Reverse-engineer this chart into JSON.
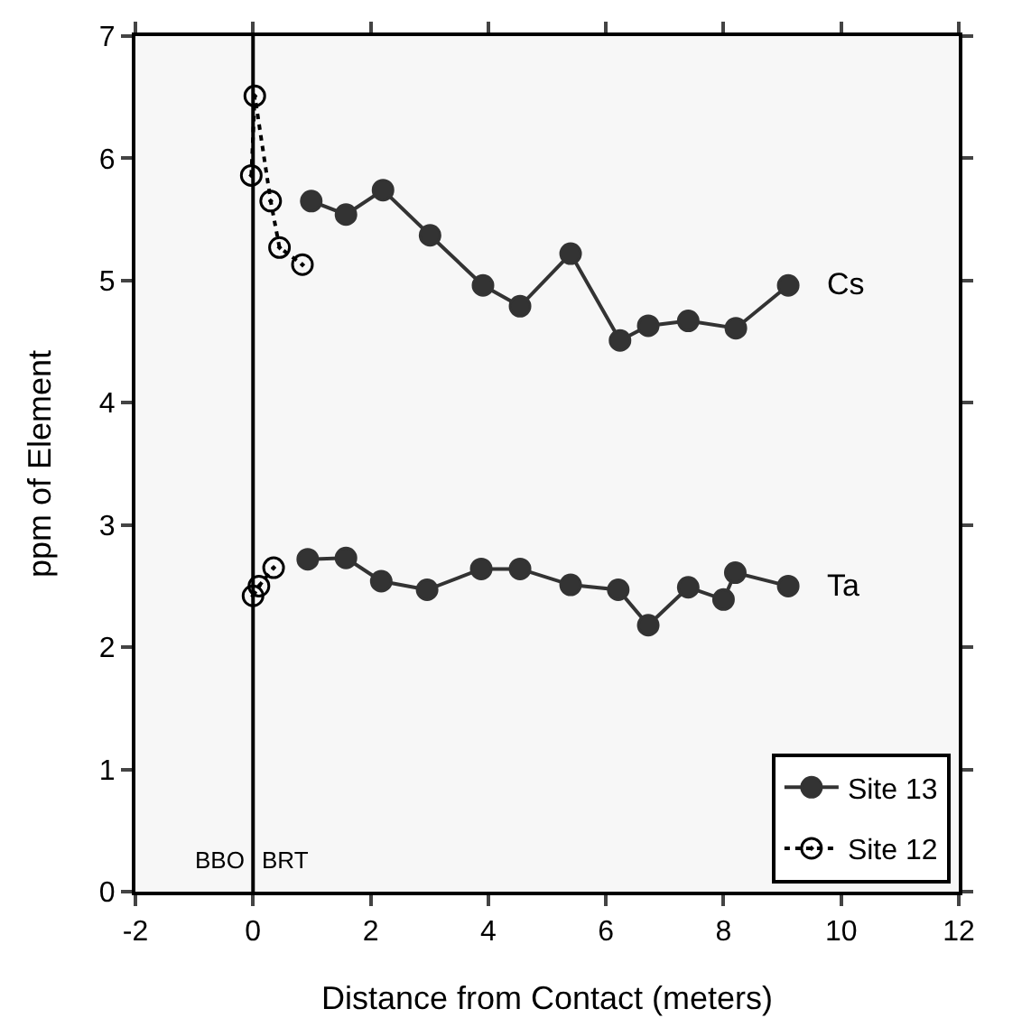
{
  "chart_data": {
    "type": "line",
    "xlabel": "Distance from Contact (meters)",
    "ylabel": "ppm of Element",
    "xlim": [
      -2,
      12
    ],
    "xticks": [
      -2,
      0,
      2,
      4,
      6,
      8,
      10,
      12
    ],
    "ylim": [
      0,
      7
    ],
    "yticks": [
      0,
      1,
      2,
      3,
      4,
      5,
      6,
      7
    ],
    "grid": false,
    "legend": "bottom right",
    "marker": "circle",
    "series": [
      {
        "name": "Site 13",
        "color": "#333333",
        "line_style": "solid",
        "x": [
          0.99,
          1.58,
          2.21,
          3.01,
          3.91,
          4.54,
          5.4,
          6.24,
          6.72,
          7.4,
          8.21,
          9.1
        ],
        "values": [
          5.65,
          5.54,
          5.74,
          5.37,
          4.96,
          4.79,
          5.22,
          4.51,
          4.63,
          4.67,
          4.61,
          4.96
        ]
      },
      {
        "color": "#333333",
        "line_style": "solid",
        "x": [
          0.93,
          1.58,
          2.18,
          2.96,
          3.88,
          4.54,
          5.4,
          6.21,
          6.72,
          7.4,
          8.0,
          8.2,
          9.1
        ],
        "values": [
          2.72,
          2.73,
          2.54,
          2.47,
          2.64,
          2.64,
          2.51,
          2.47,
          2.18,
          2.49,
          2.39,
          2.61,
          2.5
        ]
      },
      {
        "name": "Site 12",
        "color": "#000000",
        "line_style": "dotted",
        "x": [
          -0.03,
          0.03,
          0.3,
          0.45,
          0.84
        ],
        "values": [
          5.86,
          6.51,
          5.65,
          5.27,
          5.13
        ]
      },
      {
        "color": "#000000",
        "line_style": "dotted",
        "x": [
          0,
          0.1,
          0.35
        ],
        "values": [
          2.42,
          2.5,
          2.65
        ]
      }
    ],
    "ref_lines": [
      {
        "axis": "x",
        "value": 0,
        "color": "#000000",
        "line_style": "solid"
      }
    ],
    "annotations": [
      "Cs",
      "Ta",
      "BBO",
      "BRT"
    ]
  }
}
